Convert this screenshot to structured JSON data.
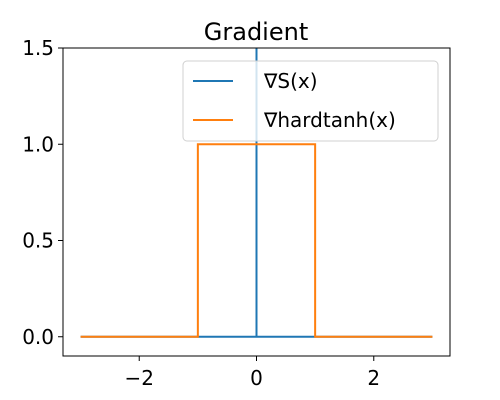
{
  "chart_data": {
    "type": "line",
    "title": "Gradient",
    "xlabel": "",
    "ylabel": "",
    "xlim": [
      -3.3,
      3.3
    ],
    "ylim": [
      -0.1,
      1.5
    ],
    "xticks": [
      -2,
      0,
      2
    ],
    "xtick_labels": [
      "−2",
      "0",
      "2"
    ],
    "yticks": [
      0.0,
      0.5,
      1.0,
      1.5
    ],
    "ytick_labels": [
      "0.0",
      "0.5",
      "1.0",
      "1.5"
    ],
    "grid": false,
    "legend_position": "top-right",
    "series": [
      {
        "name": "∇S(x)",
        "color": "#1f77b4",
        "x": [
          -3,
          0,
          0,
          0,
          3
        ],
        "y": [
          0,
          0,
          1.5,
          0,
          0
        ]
      },
      {
        "name": "∇hardtanh(x)",
        "color": "#ff7f0e",
        "x": [
          -3,
          -1,
          -1,
          1,
          1,
          3
        ],
        "y": [
          0,
          0,
          1,
          1,
          0,
          0
        ]
      }
    ]
  }
}
